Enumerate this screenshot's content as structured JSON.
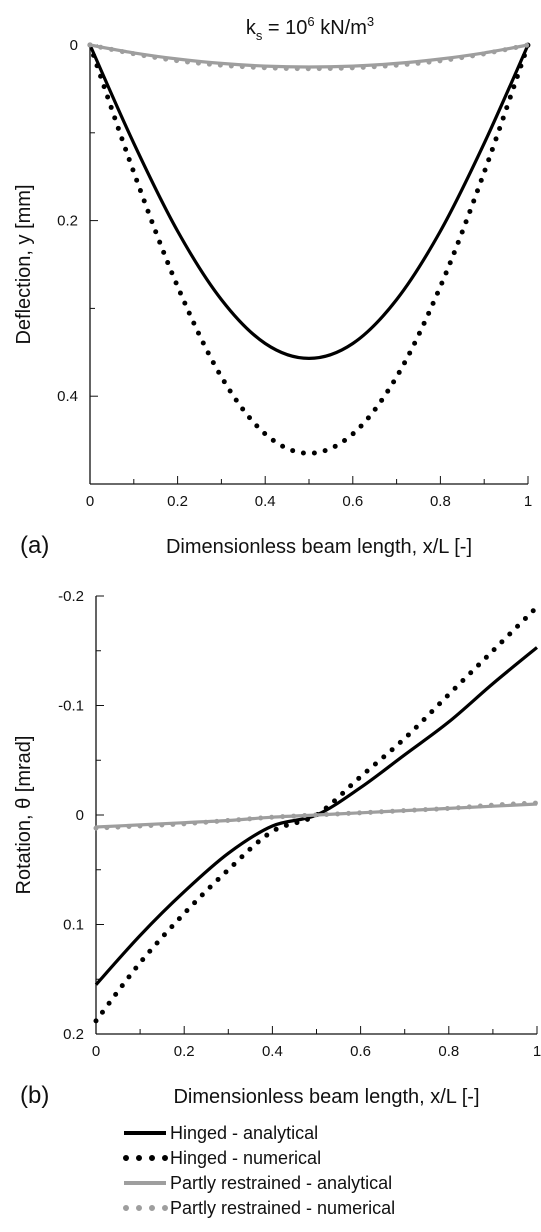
{
  "figure": {
    "title_base": "k",
    "title_sub": "s",
    "title_rest": " = 10",
    "title_exp": "6",
    "title_unit": " kN/m",
    "title_unit_exp": "3"
  },
  "colors": {
    "hinged": "#000000",
    "partly": "#9e9e9e",
    "axis": "#111111"
  },
  "legend": [
    {
      "label": "Hinged - analytical",
      "color": "#000000",
      "style": "solid"
    },
    {
      "label": "Hinged - numerical",
      "color": "#000000",
      "style": "dotted"
    },
    {
      "label": "Partly restrained - analytical",
      "color": "#9e9e9e",
      "style": "solid"
    },
    {
      "label": "Partly restrained - numerical",
      "color": "#9e9e9e",
      "style": "dotted"
    }
  ],
  "chart_data": [
    {
      "panel_label": "(a)",
      "type": "line",
      "xlabel": "Dimensionless beam length, x/L [-]",
      "ylabel": "Deflection, y [mm]",
      "xlim": [
        0,
        1
      ],
      "ylim": [
        0,
        0.5
      ],
      "y_inverted": true,
      "xticks": [
        0,
        0.2,
        0.4,
        0.6,
        0.8,
        1
      ],
      "xtick_labels": [
        "0",
        "0.2",
        "0.4",
        "0.6",
        "0.8",
        "1"
      ],
      "yticks": [
        0,
        0.2,
        0.4
      ],
      "ytick_labels": [
        "0",
        "0.2",
        "0.4"
      ],
      "x": [
        0,
        0.1,
        0.2,
        0.3,
        0.4,
        0.5,
        0.6,
        0.7,
        0.8,
        0.9,
        1.0
      ],
      "series": [
        {
          "name": "Hinged - analytical",
          "style": "solid",
          "color": "#000000",
          "values": [
            0,
            0.112,
            0.212,
            0.29,
            0.34,
            0.357,
            0.34,
            0.29,
            0.212,
            0.112,
            0
          ]
        },
        {
          "name": "Hinged - numerical",
          "style": "dotted",
          "color": "#000000",
          "values": [
            0,
            0.145,
            0.275,
            0.378,
            0.443,
            0.465,
            0.443,
            0.378,
            0.275,
            0.145,
            0
          ]
        },
        {
          "name": "Partly restrained - analytical",
          "style": "solid",
          "color": "#9e9e9e",
          "values": [
            0,
            0.009,
            0.016,
            0.021,
            0.024,
            0.025,
            0.024,
            0.021,
            0.016,
            0.009,
            0
          ]
        },
        {
          "name": "Partly restrained - numerical",
          "style": "dotted",
          "color": "#9e9e9e",
          "values": [
            0,
            0.01,
            0.018,
            0.023,
            0.026,
            0.027,
            0.026,
            0.023,
            0.018,
            0.01,
            0
          ]
        }
      ]
    },
    {
      "panel_label": "(b)",
      "type": "line",
      "xlabel": "Dimensionless beam length, x/L [-]",
      "ylabel": "Rotation, θ [mrad]",
      "xlim": [
        0,
        1
      ],
      "ylim": [
        -0.2,
        0.2
      ],
      "y_inverted": true,
      "xticks": [
        0,
        0.2,
        0.4,
        0.6,
        0.8,
        1
      ],
      "xtick_labels": [
        "0",
        "0.2",
        "0.4",
        "0.6",
        "0.8",
        "1"
      ],
      "yticks": [
        -0.2,
        -0.1,
        0,
        0.1,
        0.2
      ],
      "ytick_labels": [
        "-0.2",
        "-0.1",
        "0",
        "0.1",
        "0.2"
      ],
      "x": [
        0,
        0.1,
        0.2,
        0.3,
        0.4,
        0.5,
        0.6,
        0.7,
        0.8,
        0.9,
        1.0
      ],
      "series": [
        {
          "name": "Hinged - analytical",
          "style": "solid",
          "color": "#000000",
          "values": [
            0.155,
            0.11,
            0.07,
            0.035,
            0.01,
            0.0,
            -0.025,
            -0.055,
            -0.085,
            -0.12,
            -0.153
          ]
        },
        {
          "name": "Hinged - numerical",
          "style": "dotted",
          "color": "#000000",
          "values": [
            0.188,
            0.135,
            0.09,
            0.05,
            0.015,
            0.0,
            -0.035,
            -0.07,
            -0.11,
            -0.15,
            -0.19
          ]
        },
        {
          "name": "Partly restrained - analytical",
          "style": "solid",
          "color": "#9e9e9e",
          "values": [
            0.011,
            0.009,
            0.007,
            0.005,
            0.002,
            0.0,
            -0.002,
            -0.004,
            -0.006,
            -0.008,
            -0.01
          ]
        },
        {
          "name": "Partly restrained - numerical",
          "style": "dotted",
          "color": "#9e9e9e",
          "values": [
            0.012,
            0.01,
            0.008,
            0.005,
            0.002,
            0.0,
            -0.002,
            -0.004,
            -0.006,
            -0.009,
            -0.011
          ]
        }
      ]
    }
  ]
}
